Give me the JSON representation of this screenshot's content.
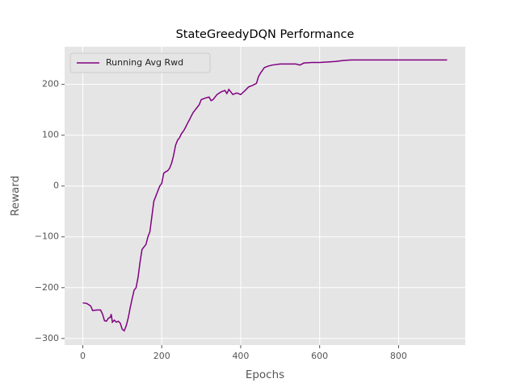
{
  "chart_data": {
    "type": "line",
    "title": "StateGreedyDQN Performance",
    "x_label": "Epochs",
    "y_label": "Reward",
    "x": [
      0,
      10,
      20,
      25,
      35,
      45,
      50,
      55,
      60,
      65,
      70,
      72,
      75,
      80,
      85,
      90,
      95,
      100,
      105,
      110,
      115,
      120,
      125,
      130,
      135,
      140,
      145,
      150,
      155,
      160,
      165,
      170,
      175,
      180,
      185,
      190,
      195,
      200,
      205,
      210,
      215,
      220,
      225,
      230,
      235,
      240,
      245,
      250,
      255,
      260,
      265,
      270,
      275,
      280,
      285,
      290,
      295,
      300,
      310,
      320,
      325,
      330,
      340,
      350,
      360,
      365,
      370,
      375,
      380,
      390,
      400,
      410,
      420,
      430,
      440,
      445,
      450,
      460,
      470,
      480,
      500,
      520,
      540,
      550,
      560,
      580,
      600,
      620,
      640,
      660,
      680,
      700,
      750,
      800,
      850,
      900,
      923
    ],
    "series": [
      {
        "name": "Running Avg Rwd",
        "color": "#800080",
        "values": [
          -230,
          -231,
          -236,
          -245,
          -244,
          -244,
          -252,
          -265,
          -266,
          -260,
          -258,
          -252,
          -268,
          -264,
          -268,
          -266,
          -270,
          -282,
          -285,
          -275,
          -260,
          -240,
          -222,
          -205,
          -200,
          -180,
          -150,
          -125,
          -120,
          -115,
          -100,
          -90,
          -60,
          -30,
          -20,
          -10,
          0,
          5,
          25,
          28,
          30,
          35,
          45,
          60,
          80,
          90,
          95,
          103,
          108,
          115,
          123,
          130,
          138,
          145,
          150,
          155,
          160,
          170,
          173,
          175,
          168,
          170,
          180,
          185,
          188,
          182,
          190,
          185,
          180,
          183,
          180,
          187,
          195,
          198,
          202,
          215,
          222,
          233,
          236,
          238,
          240,
          240,
          240,
          238,
          242,
          243,
          243,
          244,
          245,
          247,
          248,
          248,
          248,
          248,
          248,
          248,
          248
        ]
      }
    ],
    "xlim": [
      -46,
      969
    ],
    "ylim": [
      -313,
      274
    ],
    "xticks": [
      0,
      200,
      400,
      600,
      800
    ],
    "yticks": [
      {
        "value": -300,
        "label": "−300"
      },
      {
        "value": -200,
        "label": "−200"
      },
      {
        "value": -100,
        "label": "−100"
      },
      0,
      100,
      200
    ],
    "grid": true,
    "legend": "upper left"
  }
}
